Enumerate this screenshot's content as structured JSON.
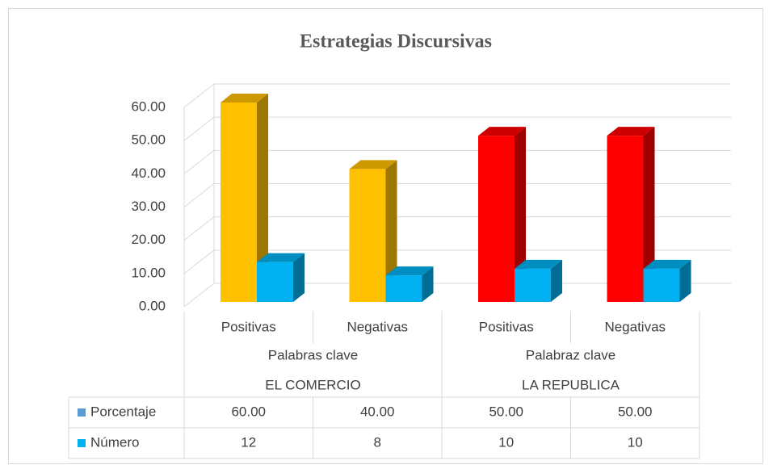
{
  "chart_data": {
    "type": "bar3d",
    "title": "Estrategias Discursivas",
    "categories": [
      "Positivas",
      "Negativas",
      "Positivas",
      "Negativas"
    ],
    "groups": [
      "Palabras clave",
      "Palabraz clave"
    ],
    "supergroups": [
      "EL COMERCIO",
      "LA REPUBLICA"
    ],
    "series": [
      {
        "name": "Porcentaje",
        "color": "#5b9bd5",
        "colors": [
          "#ffc000",
          "#ffc000",
          "#ff0000",
          "#ff0000"
        ],
        "values": [
          60,
          40,
          50,
          50
        ],
        "value_labels": [
          "60.00",
          "40.00",
          "50.00",
          "50.00"
        ]
      },
      {
        "name": "Número",
        "color": "#00b0f0",
        "values": [
          12,
          8,
          10,
          10
        ],
        "value_labels": [
          "12",
          "8",
          "10",
          "10"
        ]
      }
    ],
    "ylim": [
      0,
      60
    ],
    "yticks": [
      {
        "value": 0,
        "label": "0.00"
      },
      {
        "value": 10,
        "label": "10.00"
      },
      {
        "value": 20,
        "label": "20.00"
      },
      {
        "value": 30,
        "label": "30.00"
      },
      {
        "value": 40,
        "label": "40.00"
      },
      {
        "value": 50,
        "label": "50.00"
      },
      {
        "value": 60,
        "label": "60.00"
      }
    ],
    "grid": true,
    "data_table": true
  }
}
